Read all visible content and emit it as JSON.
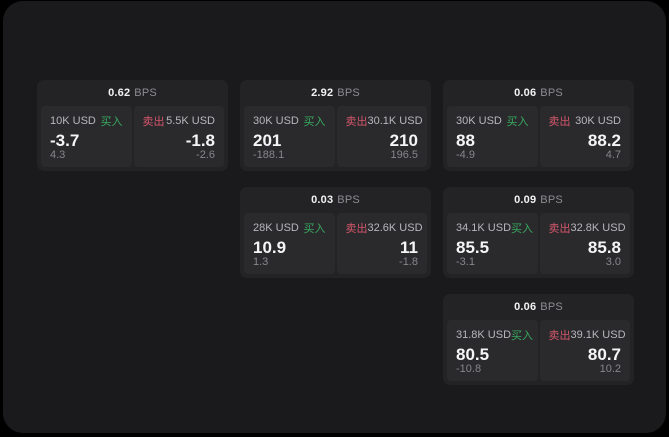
{
  "labels": {
    "bps_unit": "BPS",
    "buy": "买入",
    "sell": "卖出"
  },
  "colors": {
    "buy": "#38a95e",
    "sell": "#d4566b",
    "window_bg": "#1a1a1c",
    "card_bg": "#232325",
    "panel_bg": "#2a2a2d"
  },
  "cards": [
    {
      "bps": "0.62",
      "buy": {
        "amount": "10K USD",
        "price": "-3.7",
        "delta": "4.3"
      },
      "sell": {
        "amount": "5.5K USD",
        "price": "-1.8",
        "delta": "-2.6"
      }
    },
    {
      "bps": "2.92",
      "buy": {
        "amount": "30K USD",
        "price": "201",
        "delta": "-188.1"
      },
      "sell": {
        "amount": "30.1K USD",
        "price": "210",
        "delta": "196.5"
      }
    },
    {
      "bps": "0.06",
      "buy": {
        "amount": "30K USD",
        "price": "88",
        "delta": "-4.9"
      },
      "sell": {
        "amount": "30K USD",
        "price": "88.2",
        "delta": "4.7"
      }
    },
    {
      "bps": "0.03",
      "buy": {
        "amount": "28K USD",
        "price": "10.9",
        "delta": "1.3"
      },
      "sell": {
        "amount": "32.6K USD",
        "price": "11",
        "delta": "-1.8"
      }
    },
    {
      "bps": "0.09",
      "buy": {
        "amount": "34.1K USD",
        "price": "85.5",
        "delta": "-3.1"
      },
      "sell": {
        "amount": "32.8K USD",
        "price": "85.8",
        "delta": "3.0"
      }
    },
    {
      "bps": "0.06",
      "buy": {
        "amount": "31.8K USD",
        "price": "80.5",
        "delta": "-10.8"
      },
      "sell": {
        "amount": "39.1K USD",
        "price": "80.7",
        "delta": "10.2"
      }
    }
  ]
}
